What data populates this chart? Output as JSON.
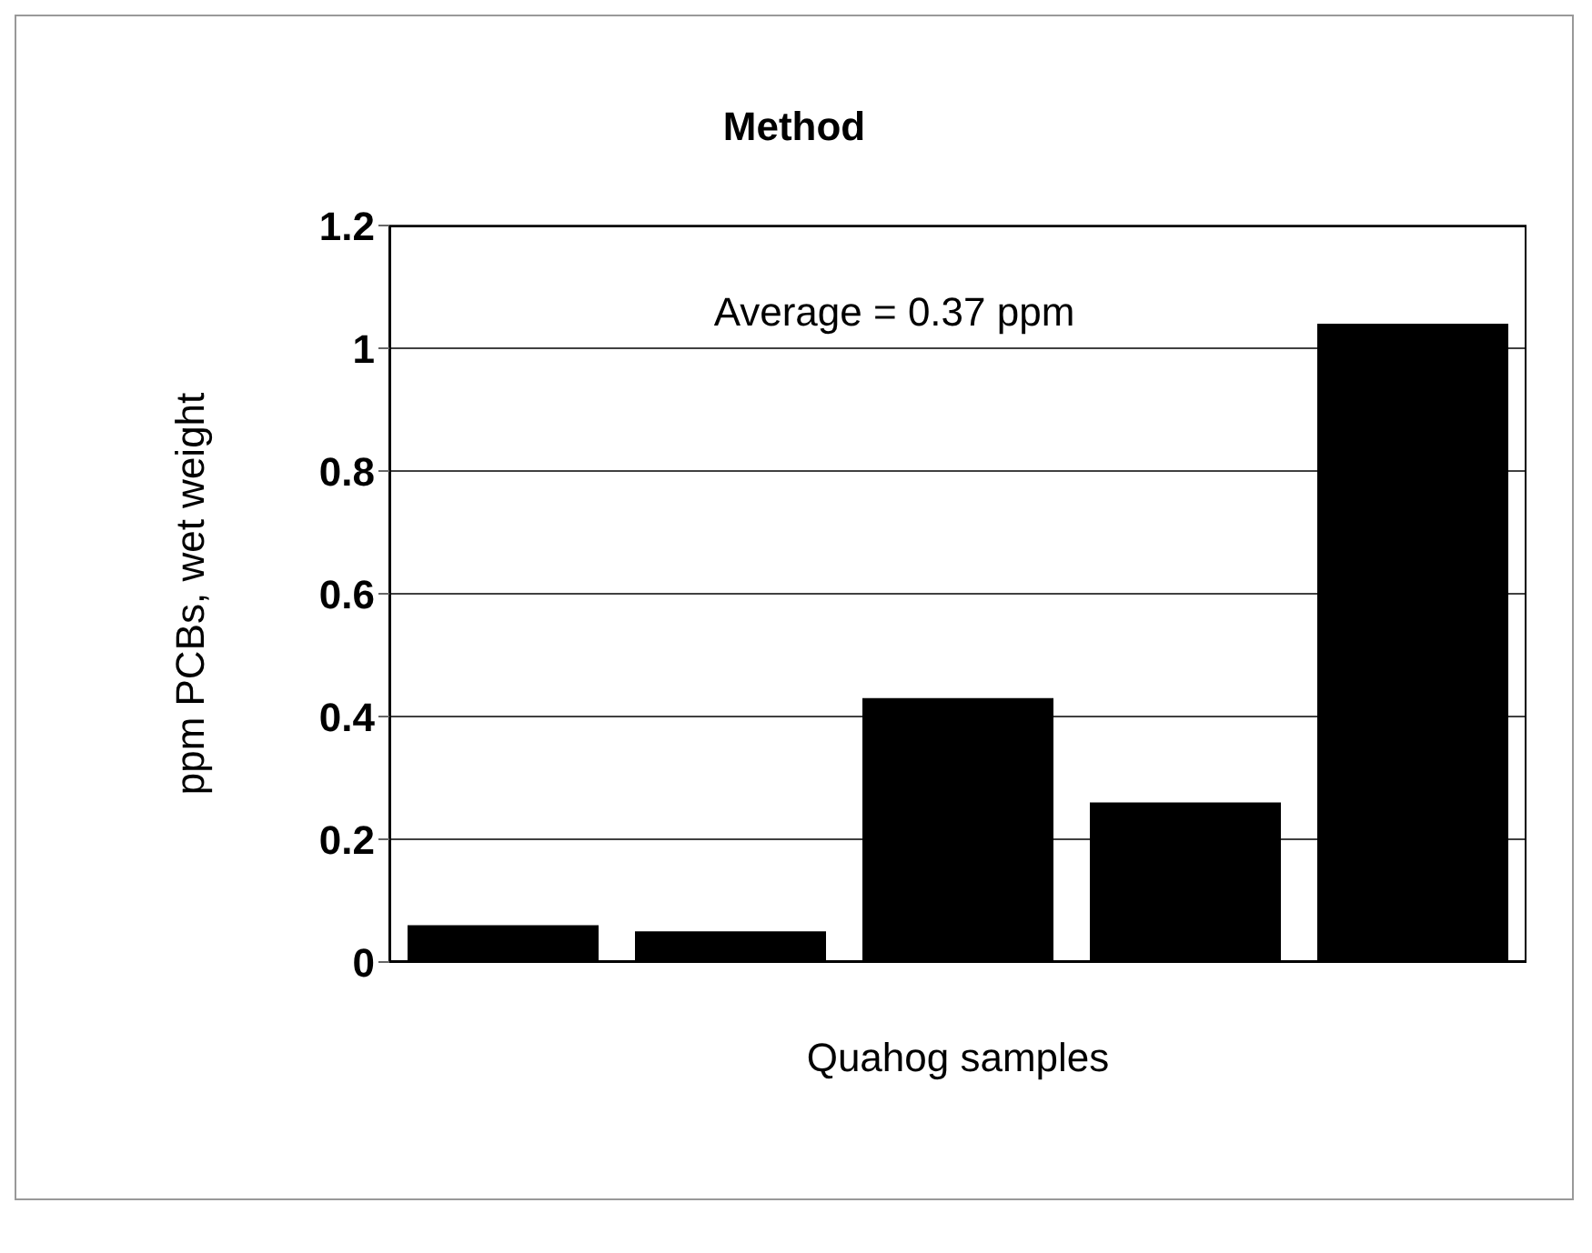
{
  "chart_data": {
    "type": "bar",
    "title": "Method",
    "xlabel": "Quahog samples",
    "ylabel": "ppm PCBs, wet weight",
    "categories": [
      null,
      null,
      null,
      null,
      null
    ],
    "values": [
      0.06,
      0.05,
      0.43,
      0.26,
      1.04
    ],
    "color": "#000000",
    "ylim": [
      0,
      1.2
    ],
    "yticks": [
      0,
      0.2,
      0.4,
      0.6,
      0.8,
      1,
      1.2
    ],
    "grid": "y",
    "annotations": [
      "Average = 0.37 ppm"
    ]
  }
}
